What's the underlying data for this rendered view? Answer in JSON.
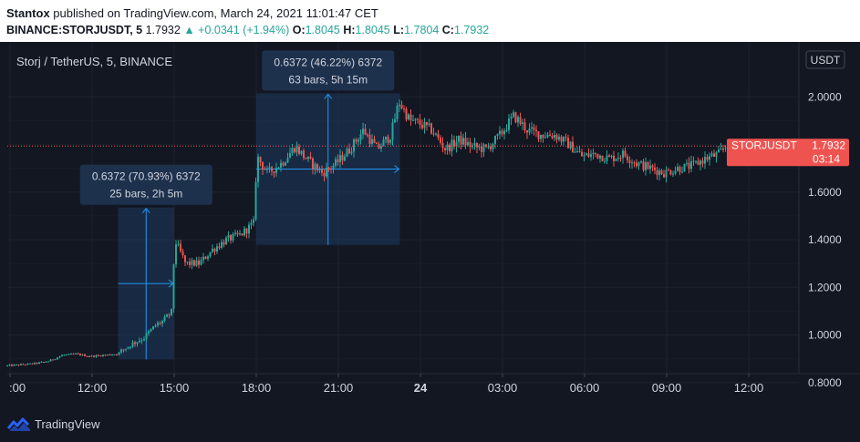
{
  "header": {
    "author": "Stantox",
    "published_text": "published on TradingView.com, March 24, 2021 11:01:47 CET",
    "symbol_line": "BINANCE:STORJUSDT, 5",
    "last": "1.7932",
    "change": "▲ +0.0341 (+1.94%)",
    "o_label": "O:",
    "o_value": "1.8045",
    "h_label": "H:",
    "h_value": "1.8045",
    "l_label": "L:",
    "l_value": "1.7804",
    "c_label": "C:",
    "c_value": "1.7932"
  },
  "footer": {
    "brand": "TradingView"
  },
  "colors": {
    "background": "#131722",
    "up": "#26a69a",
    "down": "#ef5350",
    "measure_fill": "#1e3a5f",
    "measure_line": "#2196f3",
    "text": "#d1d4dc",
    "grid": "#1e222d"
  },
  "chart_data": {
    "type": "candlestick",
    "title": "Storj / TetherUS, 5, BINANCE",
    "currency_label": "USDT",
    "price_tag": {
      "symbol": "STORJUSDT",
      "value": "1.7932",
      "countdown": "03:14"
    },
    "ylim": [
      0.72,
      2.1
    ],
    "y_ticks": [
      {
        "v": 0.8,
        "label": "0.8000"
      },
      {
        "v": 1.0,
        "label": "1.0000"
      },
      {
        "v": 1.2,
        "label": "1.2000"
      },
      {
        "v": 1.4,
        "label": "1.4000"
      },
      {
        "v": 1.6,
        "label": "1.6000"
      },
      {
        "v": 2.0,
        "label": "2.0000"
      }
    ],
    "x_ticks": [
      {
        "h": 9.0,
        "label": ":00"
      },
      {
        "h": 12.0,
        "label": "12:00"
      },
      {
        "h": 15.0,
        "label": "15:00"
      },
      {
        "h": 18.0,
        "label": "18:00"
      },
      {
        "h": 21.0,
        "label": "21:00"
      },
      {
        "h": 24.0,
        "label": "24",
        "bold": true
      },
      {
        "h": 27.0,
        "label": "03:00"
      },
      {
        "h": 30.0,
        "label": "06:00"
      },
      {
        "h": 33.0,
        "label": "09:00"
      },
      {
        "h": 36.0,
        "label": "12:00"
      }
    ],
    "price_path": [
      [
        8.9,
        0.87
      ],
      [
        9.5,
        0.875
      ],
      [
        10.0,
        0.88
      ],
      [
        10.5,
        0.89
      ],
      [
        11.0,
        0.915
      ],
      [
        11.5,
        0.92
      ],
      [
        12.0,
        0.91
      ],
      [
        12.5,
        0.915
      ],
      [
        13.0,
        0.92
      ],
      [
        13.5,
        0.96
      ],
      [
        14.0,
        0.99
      ],
      [
        14.4,
        1.04
      ],
      [
        14.7,
        1.06
      ],
      [
        15.0,
        1.1
      ],
      [
        15.1,
        1.4
      ],
      [
        15.5,
        1.3
      ],
      [
        16.0,
        1.3
      ],
      [
        16.5,
        1.36
      ],
      [
        17.0,
        1.4
      ],
      [
        17.5,
        1.42
      ],
      [
        18.0,
        1.47
      ],
      [
        18.1,
        1.75
      ],
      [
        18.5,
        1.68
      ],
      [
        19.0,
        1.72
      ],
      [
        19.5,
        1.79
      ],
      [
        20.0,
        1.73
      ],
      [
        20.5,
        1.68
      ],
      [
        21.0,
        1.72
      ],
      [
        21.5,
        1.78
      ],
      [
        22.0,
        1.86
      ],
      [
        22.5,
        1.78
      ],
      [
        23.0,
        1.84
      ],
      [
        23.3,
        1.98
      ],
      [
        23.7,
        1.9
      ],
      [
        24.0,
        1.89
      ],
      [
        24.5,
        1.86
      ],
      [
        25.0,
        1.78
      ],
      [
        25.5,
        1.82
      ],
      [
        26.0,
        1.79
      ],
      [
        26.5,
        1.78
      ],
      [
        27.0,
        1.84
      ],
      [
        27.5,
        1.92
      ],
      [
        28.0,
        1.86
      ],
      [
        28.5,
        1.84
      ],
      [
        29.0,
        1.84
      ],
      [
        29.5,
        1.8
      ],
      [
        30.0,
        1.75
      ],
      [
        30.5,
        1.76
      ],
      [
        31.0,
        1.74
      ],
      [
        31.5,
        1.76
      ],
      [
        32.0,
        1.72
      ],
      [
        32.5,
        1.7
      ],
      [
        33.0,
        1.68
      ],
      [
        33.5,
        1.7
      ],
      [
        34.0,
        1.71
      ],
      [
        34.5,
        1.74
      ],
      [
        35.0,
        1.76
      ],
      [
        35.3,
        1.8
      ]
    ],
    "last_price": 1.7932,
    "measurements": [
      {
        "text_main": "0.6372 (70.93%) 6372",
        "text_sub": "25 bars, 2h 5m",
        "h_start": 12.95,
        "h_end": 15.0,
        "p_low": 0.897,
        "p_high": 1.535
      },
      {
        "text_main": "0.6372 (46.22%) 6372",
        "text_sub": "63 bars, 5h 15m",
        "h_start": 18.0,
        "h_end": 23.25,
        "p_low": 1.378,
        "p_high": 2.015
      }
    ]
  }
}
